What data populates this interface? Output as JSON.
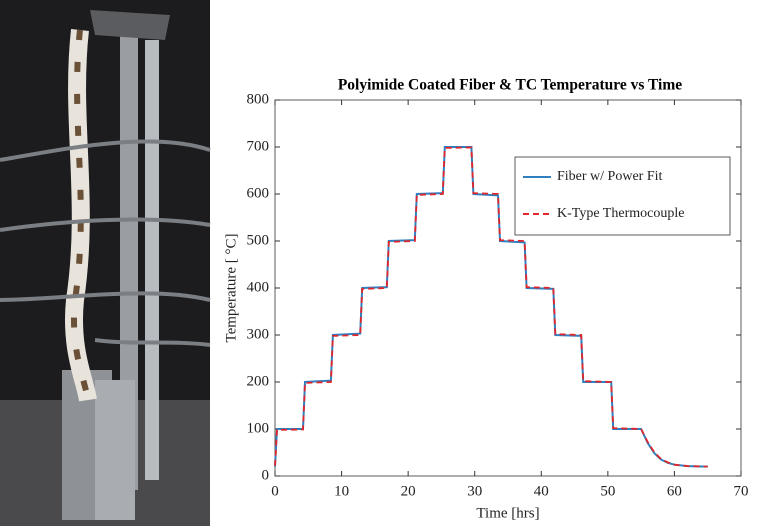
{
  "chart_data": {
    "type": "line",
    "title": "Polyimide Coated Fiber & TC Temperature vs Time",
    "x_label": "Time [hrs]",
    "y_label": "Temperature [ °C]",
    "x": [
      0,
      0.3,
      4.2,
      4.5,
      8.4,
      8.7,
      12.8,
      13.1,
      16.8,
      17.1,
      21.0,
      21.3,
      25.2,
      25.5,
      29.5,
      29.8,
      33.5,
      33.8,
      37.5,
      37.8,
      41.8,
      42.1,
      46.0,
      46.3,
      50.5,
      50.8,
      55.0,
      56,
      57,
      58,
      59,
      60,
      62,
      65
    ],
    "series": [
      {
        "name": "Fiber w/ Power Fit",
        "color": "#2f7fc1",
        "dash": false,
        "values": [
          20,
          100,
          100,
          200,
          203,
          300,
          303,
          400,
          402,
          500,
          502,
          600,
          602,
          700,
          700,
          600,
          597,
          500,
          497,
          400,
          398,
          300,
          298,
          200,
          200,
          100,
          100,
          70,
          48,
          35,
          28,
          24,
          21,
          20
        ]
      },
      {
        "name": "K-Type Thermocouple",
        "color": "#e0262b",
        "dash": true,
        "values": [
          22,
          98,
          99,
          198,
          200,
          298,
          300,
          398,
          400,
          498,
          500,
          598,
          600,
          698,
          699,
          602,
          600,
          502,
          500,
          402,
          400,
          302,
          300,
          202,
          200,
          102,
          100,
          72,
          50,
          36,
          29,
          24,
          21,
          20
        ]
      }
    ],
    "xlim": [
      0,
      70
    ],
    "xticks": [
      0,
      10,
      20,
      30,
      40,
      50,
      60,
      70
    ],
    "ylim": [
      0,
      800
    ],
    "yticks": [
      0,
      100,
      200,
      300,
      400,
      500,
      600,
      700,
      800
    ],
    "grid": false,
    "legend": "upper right"
  }
}
